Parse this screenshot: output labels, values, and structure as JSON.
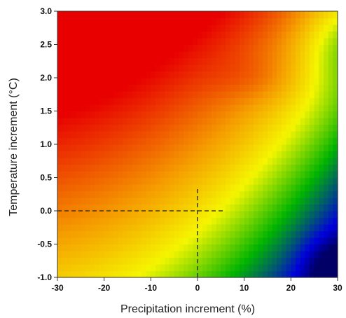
{
  "chart_data": {
    "type": "heatmap",
    "title": "",
    "xlabel": "Precipitation increment (%)",
    "ylabel": "Temperature increment (°C)",
    "xlim": [
      -30,
      30
    ],
    "ylim": [
      -1.0,
      3.0
    ],
    "x_ticks": [
      -30,
      -20,
      -10,
      0,
      10,
      20,
      30
    ],
    "y_ticks": [
      -1.0,
      -0.5,
      0.0,
      0.5,
      1.0,
      1.5,
      2.0,
      2.5,
      3.0
    ],
    "x_tick_labels": [
      "-30",
      "-20",
      "-10",
      "0",
      "10",
      "20",
      "30"
    ],
    "y_tick_labels": [
      "-1.0",
      "-0.5",
      "0.0",
      "0.5",
      "1.0",
      "1.5",
      "2.0",
      "2.5",
      "3.0"
    ],
    "color_scale": {
      "stops": [
        {
          "value": 0.0,
          "color": "#000066"
        },
        {
          "value": 0.1,
          "color": "#0000dd"
        },
        {
          "value": 0.3,
          "color": "#00b400"
        },
        {
          "value": 0.5,
          "color": "#f5f500"
        },
        {
          "value": 0.7,
          "color": "#f59a00"
        },
        {
          "value": 1.0,
          "color": "#e80000"
        }
      ]
    },
    "reference_lines": [
      {
        "axis": "y",
        "value": 0.0,
        "from": -30,
        "to": 6,
        "style": "dashed"
      },
      {
        "axis": "x",
        "value": 0,
        "from": -1.0,
        "to": 0.35,
        "style": "dashed"
      }
    ]
  }
}
